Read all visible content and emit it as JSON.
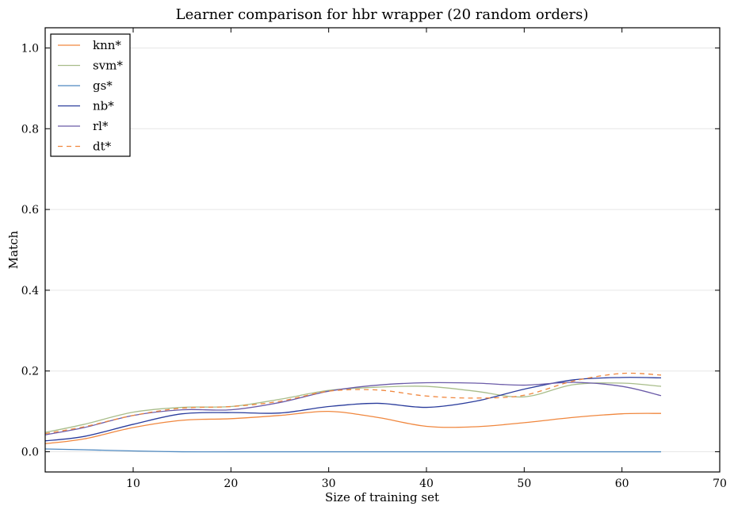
{
  "chart_data": {
    "type": "line",
    "title": "Learner comparison for hbr wrapper (20 random orders)",
    "xlabel": "Size of training set",
    "ylabel": "Match",
    "xlim": [
      1,
      70
    ],
    "ylim": [
      -0.05,
      1.05
    ],
    "xticks": [
      10,
      20,
      30,
      40,
      50,
      60,
      70
    ],
    "yticks": [
      0.0,
      0.2,
      0.4,
      0.6,
      0.8,
      1.0
    ],
    "xtick_labels": [
      "10",
      "20",
      "30",
      "40",
      "50",
      "60",
      "70"
    ],
    "ytick_labels": [
      "0.0",
      "0.2",
      "0.4",
      "0.6",
      "0.8",
      "1.0"
    ],
    "grid": "horizontal",
    "legend_position": "top-left",
    "x": [
      1,
      5,
      10,
      15,
      20,
      25,
      30,
      35,
      40,
      45,
      50,
      55,
      60,
      64
    ],
    "series": [
      {
        "name": "knn*",
        "color": "#f0873e",
        "dash": "solid",
        "values": [
          0.02,
          0.032,
          0.06,
          0.078,
          0.082,
          0.09,
          0.1,
          0.085,
          0.063,
          0.062,
          0.072,
          0.085,
          0.094,
          0.095
        ]
      },
      {
        "name": "svm*",
        "color": "#a8bd8a",
        "dash": "solid",
        "values": [
          0.048,
          0.068,
          0.098,
          0.11,
          0.112,
          0.13,
          0.152,
          0.16,
          0.162,
          0.15,
          0.136,
          0.166,
          0.17,
          0.162
        ]
      },
      {
        "name": "gs*",
        "color": "#4f89c0",
        "dash": "solid",
        "values": [
          0.007,
          0.005,
          0.002,
          0.0,
          0.0,
          0.0,
          0.0,
          0.0,
          0.0,
          0.0,
          0.0,
          0.0,
          0.0,
          0.0
        ]
      },
      {
        "name": "nb*",
        "color": "#2a3c9c",
        "dash": "solid",
        "values": [
          0.027,
          0.038,
          0.068,
          0.094,
          0.097,
          0.096,
          0.112,
          0.12,
          0.11,
          0.125,
          0.155,
          0.178,
          0.184,
          0.183
        ]
      },
      {
        "name": "rl*",
        "color": "#6b5ba8",
        "dash": "solid",
        "values": [
          0.042,
          0.06,
          0.09,
          0.104,
          0.104,
          0.122,
          0.15,
          0.165,
          0.171,
          0.17,
          0.165,
          0.172,
          0.162,
          0.139
        ]
      },
      {
        "name": "dt*",
        "color": "#f0873e",
        "dash": "dashed",
        "values": [
          0.045,
          0.062,
          0.09,
          0.108,
          0.112,
          0.125,
          0.15,
          0.153,
          0.138,
          0.133,
          0.14,
          0.175,
          0.194,
          0.19
        ]
      }
    ]
  }
}
